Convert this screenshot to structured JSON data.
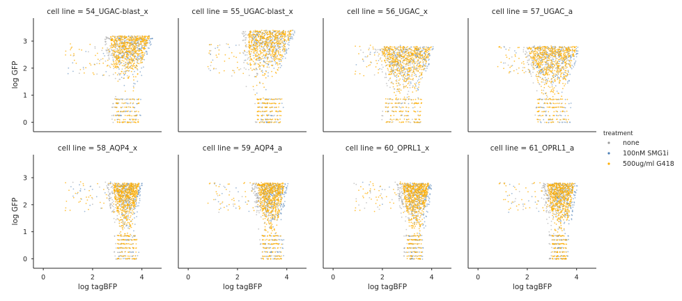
{
  "chart_data": {
    "type": "scatter",
    "layout": {
      "rows": 2,
      "cols": 4,
      "sharex": true,
      "sharey": true
    },
    "xlabel": "log tagBFP",
    "ylabel": "log GFP",
    "xlim": [
      -0.4,
      4.8
    ],
    "ylim": [
      -0.35,
      3.85
    ],
    "xticks": [
      0,
      2,
      4
    ],
    "yticks": [
      0,
      1,
      2,
      3
    ],
    "grid": false,
    "legend": {
      "title": "treatment",
      "placement": "center-right",
      "entries": [
        {
          "name": "none",
          "color": "#9a9a9a"
        },
        {
          "name": "100nM SMG1i",
          "color": "#4c7fb6"
        },
        {
          "name": "500ug/ml G418",
          "color": "#ffae00"
        }
      ]
    },
    "panels": [
      {
        "title": "cell line = 54_UGAC-blast_x",
        "clusters": {
          "x": [
            2.6,
            4.2
          ],
          "y_top": [
            2.0,
            3.2
          ],
          "lean": 0.25,
          "tail_x": [
            2.9,
            3.9
          ]
        }
      },
      {
        "title": "cell line = 55_UGAC-blast_x",
        "clusters": {
          "x": [
            2.2,
            4.0
          ],
          "y_top": [
            1.6,
            3.4
          ],
          "lean": 0.45,
          "tail_x": [
            2.8,
            3.8
          ]
        }
      },
      {
        "title": "cell line = 56_UGAC_x",
        "clusters": {
          "x": [
            1.9,
            4.0
          ],
          "y_top": [
            2.7,
            2.8
          ],
          "lean": 0.0,
          "tail_x": [
            2.1,
            3.6
          ]
        }
      },
      {
        "title": "cell line = 57_UGAC_a",
        "clusters": {
          "x": [
            2.0,
            4.0
          ],
          "y_top": [
            2.6,
            2.8
          ],
          "lean": 0.0,
          "tail_x": [
            2.4,
            3.7
          ]
        }
      },
      {
        "title": "cell line = 58_AQP4_x",
        "clusters": {
          "x": [
            2.8,
            3.9
          ],
          "y_top": [
            2.6,
            2.8
          ],
          "lean": 0.0,
          "tail_x": [
            3.0,
            3.8
          ]
        }
      },
      {
        "title": "cell line = 59_AQP4_a",
        "clusters": {
          "x": [
            2.8,
            3.9
          ],
          "y_top": [
            2.6,
            2.8
          ],
          "lean": 0.0,
          "tail_x": [
            3.0,
            3.8
          ]
        }
      },
      {
        "title": "cell line = 60_OPRL1_x",
        "clusters": {
          "x": [
            2.8,
            3.9
          ],
          "y_top": [
            2.6,
            2.8
          ],
          "lean": 0.0,
          "tail_x": [
            3.0,
            3.6
          ]
        }
      },
      {
        "title": "cell line = 61_OPRL1_a",
        "clusters": {
          "x": [
            2.8,
            3.9
          ],
          "y_top": [
            2.6,
            2.8
          ],
          "lean": 0.0,
          "tail_x": [
            3.0,
            3.6
          ]
        }
      }
    ]
  }
}
